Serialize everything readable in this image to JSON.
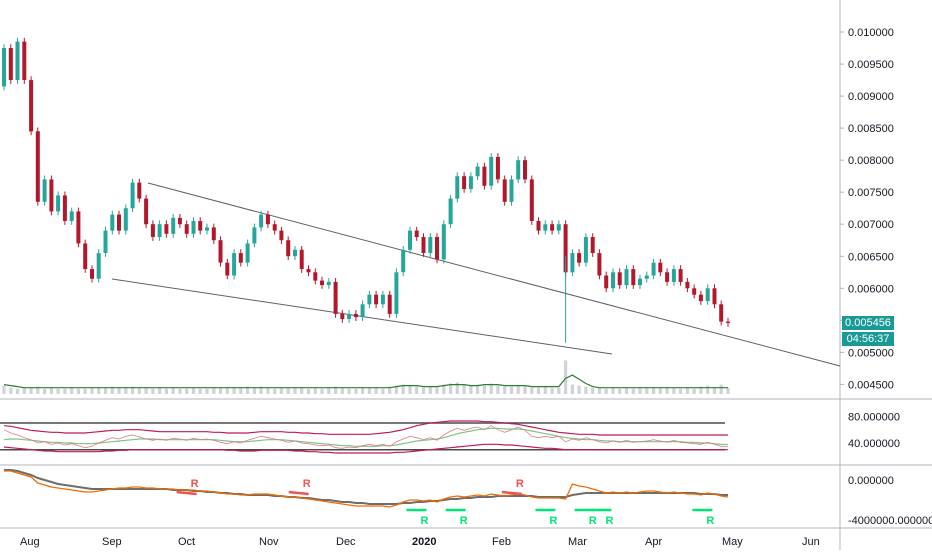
{
  "chart_data": {
    "type": "candlestick",
    "price_axis": {
      "ticks": [
        "0.010000",
        "0.009500",
        "0.009000",
        "0.008500",
        "0.008000",
        "0.007500",
        "0.007000",
        "0.006500",
        "0.006000",
        "0.005500",
        "0.005000",
        "0.004500"
      ],
      "tick_values": [
        0.01,
        0.0095,
        0.009,
        0.0085,
        0.008,
        0.0075,
        0.007,
        0.0065,
        0.006,
        0.0055,
        0.005,
        0.0045
      ],
      "ylim": [
        0.00435,
        0.01025
      ]
    },
    "time_axis": {
      "labels": [
        "Aug",
        "Sep",
        "Oct",
        "Nov",
        "Dec",
        "2020",
        "Feb",
        "Mar",
        "Apr",
        "May",
        "Jun"
      ],
      "bold_label": "2020"
    },
    "last_price": "0.005456",
    "countdown": "04:56:37",
    "colors": {
      "up": "#26a69a",
      "down": "#b2182b",
      "badge": "#1a9a96",
      "volume": "#cfd2d8",
      "volume_ma": "#2e7d32",
      "rsi": "#e07a8a",
      "rsi_signal": "#7cc47f",
      "rsi_bands": "#c2185b",
      "osc_main": "#ef6c00",
      "osc_signal": "#6d6d6d",
      "bear_mark": "#ef5350",
      "bull_mark": "#00e676"
    },
    "price_series": [
      [
        0.00915,
        0.00975
      ],
      [
        0.00975,
        0.00925
      ],
      [
        0.00925,
        0.00985
      ],
      [
        0.00985,
        0.00925
      ],
      [
        0.00925,
        0.00845
      ],
      [
        0.00845,
        0.00735
      ],
      [
        0.00735,
        0.0077
      ],
      [
        0.0077,
        0.0072
      ],
      [
        0.0072,
        0.00745
      ],
      [
        0.00745,
        0.00705
      ],
      [
        0.00705,
        0.0072
      ],
      [
        0.0072,
        0.0067
      ],
      [
        0.0067,
        0.0063
      ],
      [
        0.0063,
        0.00615
      ],
      [
        0.00615,
        0.00655
      ],
      [
        0.00655,
        0.0069
      ],
      [
        0.0069,
        0.00715
      ],
      [
        0.00715,
        0.0069
      ],
      [
        0.0069,
        0.00725
      ],
      [
        0.00725,
        0.00765
      ],
      [
        0.00765,
        0.0074
      ],
      [
        0.0074,
        0.007
      ],
      [
        0.007,
        0.0068
      ],
      [
        0.0068,
        0.007
      ],
      [
        0.007,
        0.00685
      ],
      [
        0.00685,
        0.0071
      ],
      [
        0.0071,
        0.007
      ],
      [
        0.007,
        0.00685
      ],
      [
        0.00685,
        0.00705
      ],
      [
        0.00705,
        0.0069
      ],
      [
        0.0069,
        0.00695
      ],
      [
        0.00695,
        0.00675
      ],
      [
        0.00675,
        0.0064
      ],
      [
        0.0064,
        0.0062
      ],
      [
        0.0062,
        0.00655
      ],
      [
        0.00655,
        0.0064
      ],
      [
        0.0064,
        0.0067
      ],
      [
        0.0067,
        0.00695
      ],
      [
        0.00695,
        0.00715
      ],
      [
        0.00715,
        0.007
      ],
      [
        0.007,
        0.0069
      ],
      [
        0.0069,
        0.00675
      ],
      [
        0.00675,
        0.0065
      ],
      [
        0.0065,
        0.0066
      ],
      [
        0.0066,
        0.0063
      ],
      [
        0.0063,
        0.00625
      ],
      [
        0.00625,
        0.00612
      ],
      [
        0.00612,
        0.00605
      ],
      [
        0.00605,
        0.0061
      ],
      [
        0.0061,
        0.0056
      ],
      [
        0.0056,
        0.00552
      ],
      [
        0.00552,
        0.0056
      ],
      [
        0.0056,
        0.00555
      ],
      [
        0.00555,
        0.00575
      ],
      [
        0.00575,
        0.0059
      ],
      [
        0.0059,
        0.00575
      ],
      [
        0.00575,
        0.0059
      ],
      [
        0.0059,
        0.0056
      ],
      [
        0.0056,
        0.00625
      ],
      [
        0.00625,
        0.0066
      ],
      [
        0.0066,
        0.0069
      ],
      [
        0.0069,
        0.0068
      ],
      [
        0.0068,
        0.00655
      ],
      [
        0.00655,
        0.0068
      ],
      [
        0.0068,
        0.00645
      ],
      [
        0.00645,
        0.007
      ],
      [
        0.007,
        0.0074
      ],
      [
        0.0074,
        0.00775
      ],
      [
        0.00775,
        0.00755
      ],
      [
        0.00755,
        0.00775
      ],
      [
        0.00775,
        0.0079
      ],
      [
        0.0079,
        0.0076
      ],
      [
        0.0076,
        0.00805
      ],
      [
        0.00805,
        0.0077
      ],
      [
        0.0077,
        0.00735
      ],
      [
        0.00735,
        0.0077
      ],
      [
        0.0077,
        0.008
      ],
      [
        0.008,
        0.0077
      ],
      [
        0.0077,
        0.00705
      ],
      [
        0.00705,
        0.0069
      ],
      [
        0.0069,
        0.007
      ],
      [
        0.007,
        0.0069
      ],
      [
        0.0069,
        0.007
      ],
      [
        0.007,
        0.00625
      ],
      [
        0.00625,
        0.00655
      ],
      [
        0.00655,
        0.0064
      ],
      [
        0.0064,
        0.0068
      ],
      [
        0.0068,
        0.00655
      ],
      [
        0.00655,
        0.0062
      ],
      [
        0.0062,
        0.006
      ],
      [
        0.006,
        0.00625
      ],
      [
        0.00625,
        0.00605
      ],
      [
        0.00605,
        0.0063
      ],
      [
        0.0063,
        0.00605
      ],
      [
        0.00605,
        0.00615
      ],
      [
        0.00615,
        0.0062
      ],
      [
        0.0062,
        0.0064
      ],
      [
        0.0064,
        0.00625
      ],
      [
        0.00625,
        0.0061
      ],
      [
        0.0061,
        0.0063
      ],
      [
        0.0063,
        0.0061
      ],
      [
        0.0061,
        0.006
      ],
      [
        0.006,
        0.0059
      ],
      [
        0.0059,
        0.0058
      ],
      [
        0.0058,
        0.006
      ],
      [
        0.006,
        0.00575
      ],
      [
        0.00575,
        0.00548
      ],
      [
        0.00548,
        0.00546
      ]
    ],
    "volume": [
      8,
      6,
      5,
      6,
      6,
      7,
      5,
      6,
      5,
      5,
      6,
      5,
      5,
      6,
      6,
      6,
      7,
      6,
      6,
      7,
      6,
      6,
      5,
      6,
      5,
      6,
      5,
      5,
      6,
      5,
      5,
      6,
      6,
      6,
      6,
      6,
      7,
      6,
      7,
      6,
      5,
      6,
      6,
      6,
      6,
      5,
      6,
      5,
      6,
      7,
      6,
      5,
      5,
      6,
      6,
      6,
      5,
      7,
      8,
      9,
      8,
      7,
      6,
      7,
      6,
      9,
      10,
      11,
      9,
      8,
      9,
      8,
      10,
      8,
      7,
      7,
      8,
      7,
      6,
      6,
      7,
      6,
      6,
      32,
      9,
      8,
      7,
      6,
      6,
      5,
      6,
      5,
      6,
      5,
      6,
      6,
      6,
      6,
      6,
      6,
      5,
      6,
      5,
      7,
      8,
      6,
      9,
      6
    ],
    "volume_ma": [
      9,
      8,
      7,
      6,
      6,
      6,
      6,
      6,
      6,
      6,
      6,
      6,
      6,
      6,
      6,
      6,
      6,
      6,
      6,
      6,
      6,
      6,
      6,
      6,
      6,
      6,
      6,
      6,
      6,
      6,
      6,
      6,
      6,
      6,
      6,
      6,
      6,
      6,
      6,
      6,
      6,
      6,
      6,
      6,
      6,
      6,
      6,
      6,
      6,
      6,
      6,
      6,
      6,
      6,
      6,
      6,
      6,
      6,
      7,
      8,
      8,
      8,
      7,
      7,
      7,
      8,
      9,
      9,
      9,
      8,
      8,
      9,
      9,
      9,
      8,
      8,
      8,
      8,
      7,
      7,
      7,
      7,
      7,
      15,
      18,
      14,
      10,
      7,
      6,
      6,
      6,
      6,
      6,
      6,
      6,
      6,
      6,
      6,
      6,
      6,
      6,
      6,
      6,
      6,
      6,
      6,
      6,
      6
    ],
    "rsi_axis": {
      "ticks": [
        "80.000000",
        "40.000000"
      ],
      "tick_values": [
        80,
        40
      ],
      "ylim": [
        10,
        100
      ]
    },
    "rsi": [
      60,
      55,
      52,
      48,
      45,
      40,
      42,
      38,
      40,
      37,
      39,
      36,
      33,
      35,
      40,
      44,
      48,
      46,
      50,
      52,
      49,
      46,
      44,
      46,
      44,
      47,
      46,
      44,
      47,
      45,
      46,
      44,
      41,
      39,
      42,
      40,
      44,
      47,
      50,
      48,
      46,
      44,
      41,
      43,
      40,
      39,
      37,
      36,
      37,
      33,
      32,
      34,
      33,
      36,
      38,
      36,
      38,
      35,
      42,
      46,
      50,
      48,
      45,
      48,
      44,
      52,
      58,
      62,
      59,
      62,
      64,
      60,
      66,
      60,
      56,
      60,
      64,
      59,
      50,
      48,
      50,
      48,
      50,
      42,
      46,
      44,
      48,
      45,
      42,
      40,
      43,
      41,
      44,
      41,
      42,
      43,
      45,
      43,
      41,
      44,
      41,
      40,
      39,
      38,
      41,
      38,
      35,
      35
    ],
    "rsi_signal": [
      45,
      46,
      46,
      45,
      44,
      43,
      42,
      41,
      41,
      40,
      40,
      39,
      39,
      39,
      40,
      41,
      42,
      43,
      44,
      45,
      46,
      46,
      46,
      45,
      45,
      45,
      45,
      45,
      45,
      45,
      45,
      45,
      44,
      43,
      42,
      42,
      42,
      43,
      44,
      45,
      45,
      45,
      44,
      43,
      42,
      41,
      40,
      39,
      38,
      37,
      36,
      36,
      35,
      35,
      35,
      35,
      36,
      36,
      37,
      39,
      41,
      43,
      44,
      45,
      46,
      48,
      51,
      54,
      56,
      58,
      60,
      61,
      62,
      62,
      61,
      61,
      61,
      60,
      58,
      56,
      54,
      52,
      50,
      48,
      47,
      46,
      45,
      45,
      44,
      43,
      43,
      42,
      42,
      42,
      42,
      42,
      42,
      42,
      42,
      42,
      42,
      41,
      41,
      40,
      40,
      39,
      38,
      38
    ],
    "rsi_upper": [
      66,
      65,
      63,
      61,
      59,
      58,
      57,
      56,
      56,
      55,
      55,
      55,
      55,
      56,
      57,
      58,
      59,
      59,
      60,
      60,
      60,
      59,
      58,
      57,
      57,
      57,
      57,
      57,
      57,
      57,
      57,
      56,
      56,
      55,
      55,
      55,
      55,
      56,
      57,
      57,
      57,
      57,
      56,
      56,
      55,
      55,
      54,
      54,
      53,
      53,
      53,
      53,
      53,
      53,
      53,
      54,
      55,
      56,
      58,
      60,
      63,
      66,
      68,
      70,
      71,
      72,
      73,
      73,
      73,
      73,
      73,
      72,
      72,
      71,
      70,
      69,
      68,
      66,
      64,
      62,
      60,
      58,
      56,
      55,
      54,
      53,
      53,
      53,
      52,
      52,
      52,
      52,
      52,
      52,
      52,
      52,
      52,
      52,
      52,
      52,
      52,
      52,
      52,
      52,
      52,
      52,
      52,
      52
    ],
    "rsi_lower": [
      34,
      33,
      32,
      31,
      30,
      29,
      28,
      28,
      27,
      27,
      27,
      27,
      27,
      27,
      27,
      28,
      28,
      29,
      29,
      30,
      30,
      30,
      30,
      30,
      30,
      30,
      30,
      30,
      30,
      30,
      30,
      30,
      30,
      29,
      29,
      28,
      28,
      28,
      29,
      29,
      29,
      29,
      29,
      28,
      28,
      27,
      27,
      26,
      26,
      25,
      25,
      25,
      25,
      25,
      25,
      25,
      25,
      25,
      26,
      26,
      27,
      28,
      29,
      30,
      31,
      32,
      33,
      34,
      35,
      36,
      37,
      38,
      38,
      38,
      37,
      37,
      36,
      35,
      34,
      33,
      32,
      32,
      31,
      30,
      30,
      30,
      30,
      30,
      30,
      30,
      30,
      30,
      30,
      30,
      30,
      30,
      30,
      30,
      30,
      30,
      30,
      30,
      30,
      30,
      30,
      30,
      30,
      30
    ],
    "osc_axis": {
      "ticks": [
        "0.000000",
        "-4000000.000000"
      ],
      "tick_values": [
        0,
        -4000000
      ],
      "ylim": [
        -4600000,
        1300000
      ]
    },
    "osc_main": [
      900000,
      900000,
      700000,
      500000,
      300000,
      -300000,
      -500000,
      -700000,
      -800000,
      -900000,
      -1000000,
      -1100000,
      -1200000,
      -1200000,
      -1100000,
      -1000000,
      -900000,
      -800000,
      -800000,
      -700000,
      -700000,
      -800000,
      -800000,
      -900000,
      -900000,
      -900000,
      -1000000,
      -1000000,
      -1000000,
      -1100000,
      -1100000,
      -1200000,
      -1300000,
      -1400000,
      -1400000,
      -1500000,
      -1500000,
      -1400000,
      -1400000,
      -1400000,
      -1500000,
      -1600000,
      -1700000,
      -1700000,
      -1800000,
      -1900000,
      -2000000,
      -2100000,
      -2200000,
      -2300000,
      -2400000,
      -2500000,
      -2600000,
      -2600000,
      -2600000,
      -2600000,
      -2600000,
      -2700000,
      -2500000,
      -2200000,
      -2000000,
      -2000000,
      -2100000,
      -2000000,
      -2200000,
      -1900000,
      -1700000,
      -1600000,
      -1700000,
      -1600000,
      -1500000,
      -1600000,
      -1400000,
      -1500000,
      -1600000,
      -1500000,
      -1400000,
      -1500000,
      -1700000,
      -1800000,
      -1800000,
      -1800000,
      -1800000,
      -1900000,
      -400000,
      -600000,
      -700000,
      -900000,
      -1100000,
      -1300000,
      -1200000,
      -1300000,
      -1200000,
      -1300000,
      -1200000,
      -1100000,
      -1100000,
      -1200000,
      -1300000,
      -1200000,
      -1300000,
      -1400000,
      -1400000,
      -1500000,
      -1300000,
      -1400000,
      -1600000,
      -1700000
    ],
    "osc_signal": [
      1000000,
      1000000,
      900000,
      700000,
      500000,
      200000,
      0,
      -200000,
      -400000,
      -500000,
      -600000,
      -700000,
      -800000,
      -900000,
      -900000,
      -900000,
      -900000,
      -900000,
      -900000,
      -900000,
      -900000,
      -900000,
      -900000,
      -900000,
      -900000,
      -1000000,
      -1000000,
      -1000000,
      -1100000,
      -1100000,
      -1200000,
      -1200000,
      -1300000,
      -1300000,
      -1400000,
      -1400000,
      -1500000,
      -1500000,
      -1500000,
      -1500000,
      -1600000,
      -1600000,
      -1700000,
      -1700000,
      -1800000,
      -1800000,
      -1900000,
      -2000000,
      -2000000,
      -2100000,
      -2200000,
      -2200000,
      -2300000,
      -2300000,
      -2400000,
      -2400000,
      -2400000,
      -2400000,
      -2400000,
      -2300000,
      -2300000,
      -2200000,
      -2200000,
      -2100000,
      -2100000,
      -2000000,
      -1900000,
      -1900000,
      -1800000,
      -1800000,
      -1700000,
      -1700000,
      -1700000,
      -1600000,
      -1600000,
      -1600000,
      -1600000,
      -1600000,
      -1600000,
      -1700000,
      -1700000,
      -1700000,
      -1700000,
      -1700000,
      -1500000,
      -1400000,
      -1300000,
      -1300000,
      -1300000,
      -1300000,
      -1300000,
      -1300000,
      -1300000,
      -1300000,
      -1300000,
      -1300000,
      -1300000,
      -1300000,
      -1300000,
      -1300000,
      -1300000,
      -1300000,
      -1300000,
      -1400000,
      -1400000,
      -1400000,
      -1500000,
      -1500000
    ],
    "divergence_markers": [
      {
        "label": "R",
        "kind": "bear",
        "index": 34
      },
      {
        "label": "R",
        "kind": "bear",
        "index": 54
      },
      {
        "label": "R",
        "kind": "bull",
        "index": 75
      },
      {
        "label": "R",
        "kind": "bull",
        "index": 82
      },
      {
        "label": "R",
        "kind": "bear",
        "index": 92
      },
      {
        "label": "R",
        "kind": "bull",
        "index": 98
      },
      {
        "label": "R",
        "kind": "bull",
        "index": 105
      },
      {
        "label": "R",
        "kind": "bull",
        "index": 108
      },
      {
        "label": "R",
        "kind": "bull",
        "index": 126
      }
    ]
  }
}
